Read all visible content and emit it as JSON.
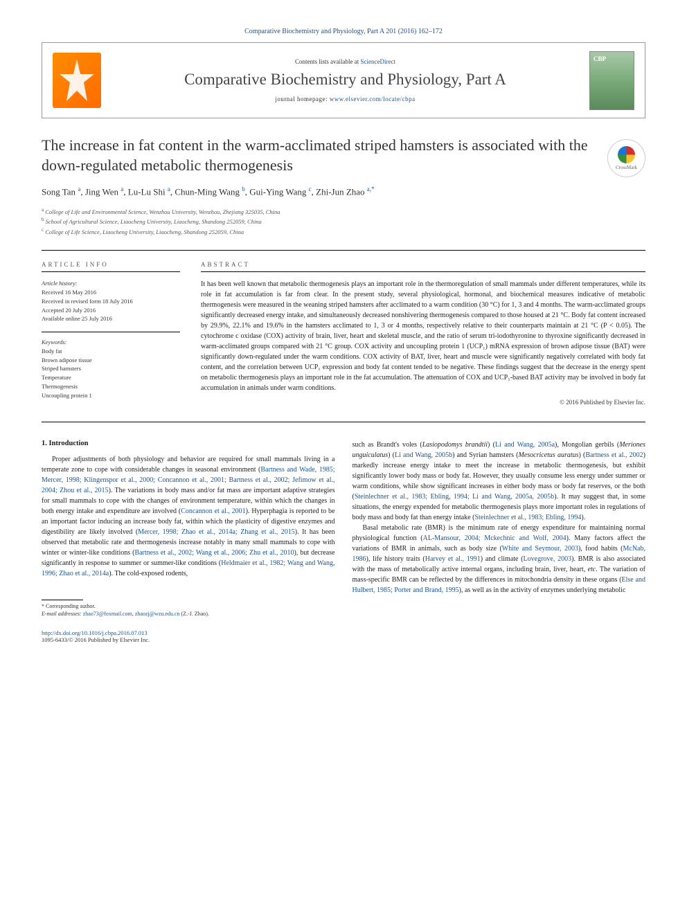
{
  "top_link": "Comparative Biochemistry and Physiology, Part A 201 (2016) 162–172",
  "header": {
    "contents_text": "Contents lists available at ",
    "contents_link": "ScienceDirect",
    "journal_name": "Comparative Biochemistry and Physiology, Part A",
    "homepage_label": "journal homepage: ",
    "homepage_url": "www.elsevier.com/locate/cbpa"
  },
  "crossmark_label": "CrossMark",
  "title": "The increase in fat content in the warm-acclimated striped hamsters is associated with the down-regulated metabolic thermogenesis",
  "authors_html": "Song Tan <sup>a</sup>, Jing Wen <sup>a</sup>, Lu-Lu Shi <sup>a</sup>, Chun-Ming Wang <sup>b</sup>, Gui-Ying Wang <sup>c</sup>, Zhi-Jun Zhao <sup>a,*</sup>",
  "affiliations": [
    "a  College of Life and Environmental Science, Wenzhou University, Wenzhou, Zhejiang 325035, China",
    "b  School of Agricultural Science, Liaocheng University, Liaocheng, Shandong 252059, China",
    "c  College of Life Science, Liaocheng University, Liaocheng, Shandong 252059, China"
  ],
  "article_info": {
    "heading": "ARTICLE INFO",
    "history_label": "Article history:",
    "history": [
      "Received 16 May 2016",
      "Received in revised form 18 July 2016",
      "Accepted 20 July 2016",
      "Available online 25 July 2016"
    ],
    "keywords_label": "Keywords:",
    "keywords": [
      "Body fat",
      "Brown adipose tissue",
      "Striped hamsters",
      "Temperature",
      "Thermogenesis",
      "Uncoupling protein 1"
    ]
  },
  "abstract": {
    "heading": "ABSTRACT",
    "text": "It has been well known that metabolic thermogenesis plays an important role in the thermoregulation of small mammals under different temperatures, while its role in fat accumulation is far from clear. In the present study, several physiological, hormonal, and biochemical measures indicative of metabolic thermogenesis were measured in the weaning striped hamsters after acclimated to a warm condition (30 °C) for 1, 3 and 4 months. The warm-acclimated groups significantly decreased energy intake, and simultaneously decreased nonshivering thermogenesis compared to those housed at 21 °C. Body fat content increased by 29.9%, 22.1% and 19.6% in the hamsters acclimated to 1, 3 or 4 months, respectively relative to their counterparts maintain at 21 °C (P < 0.05). The cytochrome c oxidase (COX) activity of brain, liver, heart and skeletal muscle, and the ratio of serum tri-iodothyronine to thyroxine significantly decreased in warm-acclimated groups compared with 21 °C group. COX activity and uncoupling protein 1 (UCP₁) mRNA expression of brown adipose tissue (BAT) were significantly down-regulated under the warm conditions. COX activity of BAT, liver, heart and muscle were significantly negatively correlated with body fat content, and the correlation between UCP₁ expression and body fat content tended to be negative. These findings suggest that the decrease in the energy spent on metabolic thermogenesis plays an important role in the fat accumulation. The attenuation of COX and UCP₁-based BAT activity may be involved in body fat accumulation in animals under warm conditions.",
    "copyright": "© 2016 Published by Elsevier Inc."
  },
  "intro": {
    "heading": "1. Introduction",
    "col1_p1": "Proper adjustments of both physiology and behavior are required for small mammals living in a temperate zone to cope with considerable changes in seasonal environment (<a>Bartness and Wade, 1985; Mercer, 1998; Klingenspor et al., 2000; Concannon et al., 2001; Bartness et al., 2002; Jefimow et al., 2004; Zhou et al., 2015</a>). The variations in body mass and/or fat mass are important adaptive strategies for small mammals to cope with the changes of environment temperature, within which the changes in both energy intake and expenditure are involved (<a>Concannon et al., 2001</a>). Hyperphagia is reported to be an important factor inducing an increase body fat, within which the plasticity of digestive enzymes and digestibility are likely involved (<a>Mercer, 1998; Zhao et al., 2014a; Zhang et al., 2015</a>). It has been observed that metabolic rate and thermogenesis increase notably in many small mammals to cope with winter or winter-like conditions (<a>Bartness et al., 2002; Wang et al., 2006; Zhu et al., 2010</a>), but decrease significantly in response to summer or summer-like conditions (<a>Heldmaier et al., 1982; Wang and Wang, 1996; Zhao et al., 2014a</a>). The cold-exposed rodents,",
    "col2_p1": "such as Brandt's voles (<i>Lasiopodomys brandtii</i>) (<a>Li and Wang, 2005a</a>), Mongolian gerbils (<i>Meriones unguiculatus</i>) (<a>Li and Wang, 2005b</a>) and Syrian hamsters (<i>Mesocricetus auratus</i>) (<a>Bartness et al., 2002</a>) markedly increase energy intake to meet the increase in metabolic thermogenesis, but exhibit significantly lower body mass or body fat. However, they usually consume less energy under summer or warm conditions, while show significant increases in either body mass or body fat reserves, or the both (<a>Steinlechner et al., 1983; Ebling, 1994; Li and Wang, 2005a, 2005b</a>). It may suggest that, in some situations, the energy expended for metabolic thermogenesis plays more important roles in regulations of body mass and body fat than energy intake (<a>Steinlechner et al., 1983; Ebling, 1994</a>).",
    "col2_p2": "Basal metabolic rate (BMR) is the minimum rate of energy expenditure for maintaining normal physiological function (<a>AL-Mansour, 2004; Mckechnic and Wolf, 2004</a>). Many factors affect the variations of BMR in animals, such as body size (<a>White and Seymour, 2003</a>), food habits (<a>McNab, 1986</a>), life history traits (<a>Harvey et al., 1991</a>) and climate (<a>Lovegrove, 2003</a>). BMR is also associated with the mass of metabolically active internal organs, including brain, liver, heart, <i>etc</i>. The variation of mass-specific BMR can be reflected by the differences in mitochondria density in these organs (<a>Else and Hulbert, 1985; Porter and Brand, 1995</a>), as well as in the activity of enzymes underlying metabolic"
  },
  "footer": {
    "corresponding": "* Corresponding author.",
    "email_label": "E-mail addresses: ",
    "email1": "zhao73@foxmail.com",
    "email2": "zhaozj@wzu.edu.cn",
    "email_suffix": " (Z.-J. Zhao).",
    "doi": "http://dx.doi.org/10.1016/j.cbpa.2016.07.013",
    "issn": "1095-6433/© 2016 Published by Elsevier Inc."
  }
}
